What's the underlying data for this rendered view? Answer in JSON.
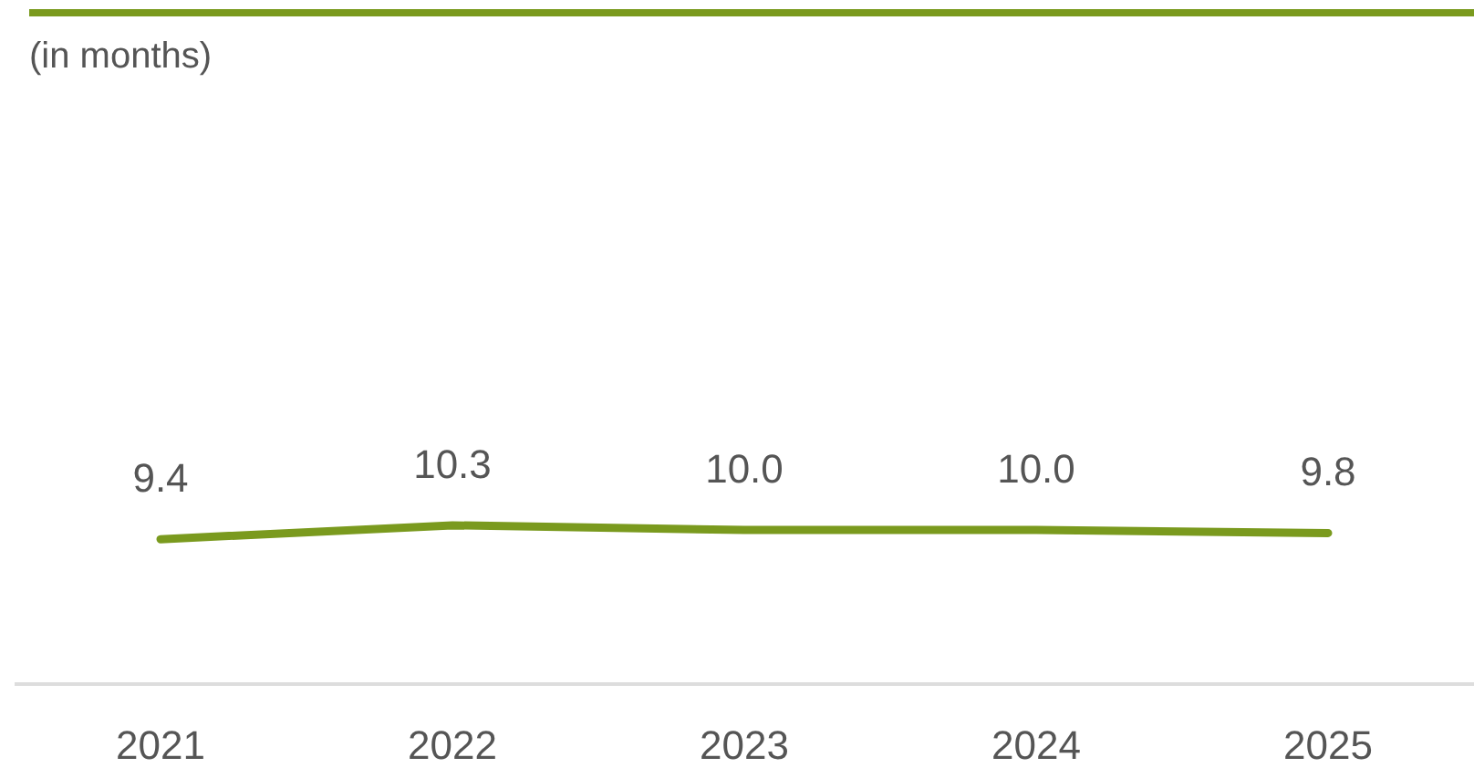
{
  "chart_data": {
    "type": "line",
    "subtitle": "(in months)",
    "categories": [
      "2021",
      "2022",
      "2023",
      "2024",
      "2025"
    ],
    "series": [
      {
        "color": "#7a9a1e",
        "values": [
          9.4,
          10.3,
          10.0,
          10.0,
          9.8
        ],
        "value_labels": [
          "9.4",
          "10.3",
          "10.0",
          "10.0",
          "9.8"
        ]
      }
    ],
    "marker": "none",
    "line_style": "solid"
  }
}
